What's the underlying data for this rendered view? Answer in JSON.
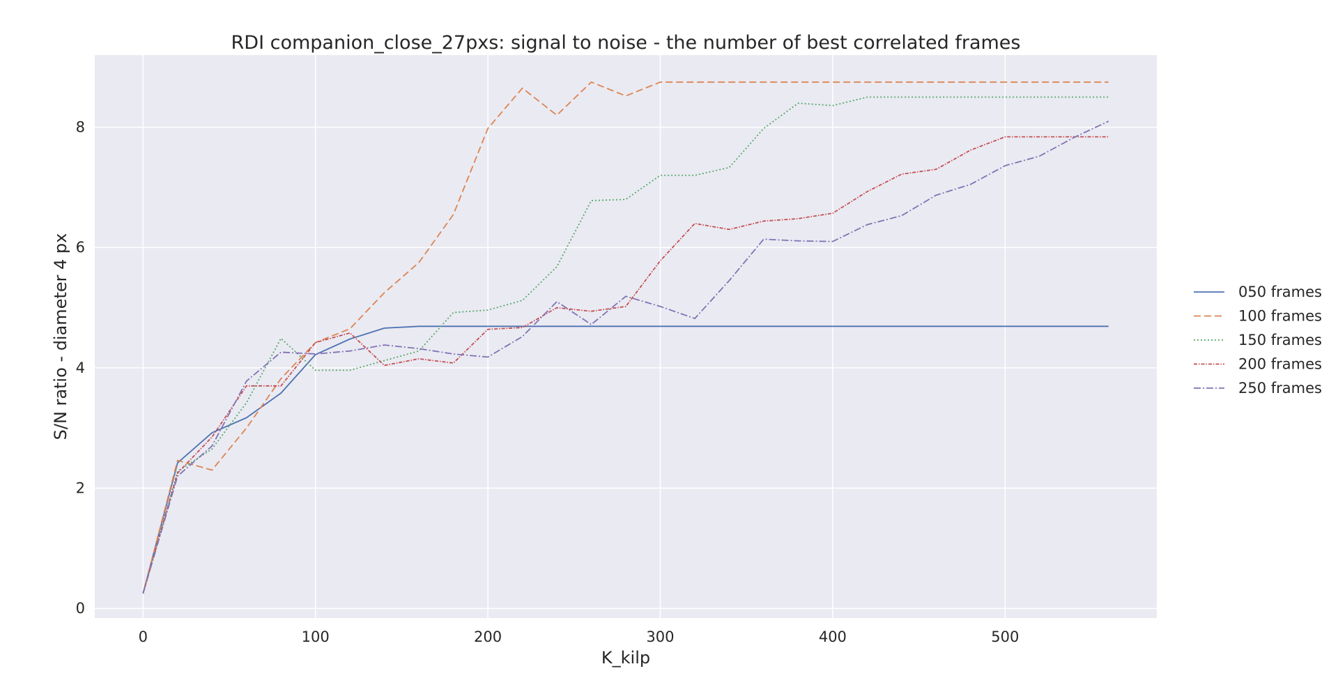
{
  "chart_data": {
    "type": "line",
    "title": "RDI companion_close_27pxs: signal to noise - the number of best correlated frames",
    "xlabel": "K_kilp",
    "ylabel": "S/N ratio - diameter 4 px",
    "xlim": [
      -28,
      588
    ],
    "ylim": [
      -0.16,
      9.2
    ],
    "xticks": [
      0,
      100,
      200,
      300,
      400,
      500
    ],
    "yticks": [
      0,
      2,
      4,
      6,
      8
    ],
    "grid": true,
    "legend_position": "right",
    "background_color": "#eaeaf2",
    "grid_color": "#ffffff",
    "x": [
      0,
      20,
      40,
      60,
      80,
      100,
      120,
      140,
      160,
      180,
      200,
      220,
      240,
      260,
      280,
      300,
      320,
      340,
      360,
      380,
      400,
      420,
      440,
      460,
      480,
      500,
      520,
      540,
      560
    ],
    "series": [
      {
        "name": "050 frames",
        "color": "#4c72b0",
        "dash": "",
        "values": [
          0.25,
          2.42,
          2.92,
          3.17,
          3.58,
          4.22,
          4.48,
          4.66,
          4.69,
          4.69,
          4.69,
          4.69,
          4.69,
          4.69,
          4.69,
          4.69,
          4.69,
          4.69,
          4.69,
          4.69,
          4.69,
          4.69,
          4.69,
          4.69,
          4.69,
          4.69,
          4.69,
          4.69,
          4.69
        ]
      },
      {
        "name": "100 frames",
        "color": "#dd8452",
        "dash": "10,5",
        "values": [
          0.25,
          2.46,
          2.3,
          3.0,
          3.82,
          4.42,
          4.65,
          5.25,
          5.75,
          6.55,
          7.98,
          8.65,
          8.2,
          8.75,
          8.52,
          8.75,
          8.75,
          8.75,
          8.75,
          8.75,
          8.75,
          8.75,
          8.75,
          8.75,
          8.75,
          8.75,
          8.75,
          8.75,
          8.75
        ]
      },
      {
        "name": "150 frames",
        "color": "#55a868",
        "dash": "2,3",
        "values": [
          0.25,
          2.28,
          2.65,
          3.42,
          4.49,
          3.96,
          3.96,
          4.12,
          4.28,
          4.92,
          4.96,
          5.12,
          5.68,
          6.78,
          6.8,
          7.2,
          7.2,
          7.33,
          7.98,
          8.4,
          8.36,
          8.5,
          8.5,
          8.5,
          8.5,
          8.5,
          8.5,
          8.5,
          8.5
        ]
      },
      {
        "name": "200 frames",
        "color": "#c44e52",
        "dash": "5,2,1.5,2",
        "values": [
          0.25,
          2.25,
          2.85,
          3.7,
          3.7,
          4.42,
          4.58,
          4.04,
          4.15,
          4.08,
          4.64,
          4.67,
          5.0,
          4.94,
          5.02,
          5.78,
          6.4,
          6.3,
          6.44,
          6.48,
          6.57,
          6.93,
          7.22,
          7.3,
          7.62,
          7.84,
          7.84,
          7.84,
          7.84
        ]
      },
      {
        "name": "250 frames",
        "color": "#8172b3",
        "dash": "10,3,2,3",
        "values": [
          0.25,
          2.2,
          2.7,
          3.78,
          4.26,
          4.23,
          4.28,
          4.38,
          4.32,
          4.23,
          4.18,
          4.52,
          5.1,
          4.72,
          5.19,
          5.02,
          4.82,
          5.45,
          6.14,
          6.11,
          6.1,
          6.38,
          6.53,
          6.87,
          7.05,
          7.36,
          7.52,
          7.83,
          8.1
        ]
      }
    ]
  }
}
